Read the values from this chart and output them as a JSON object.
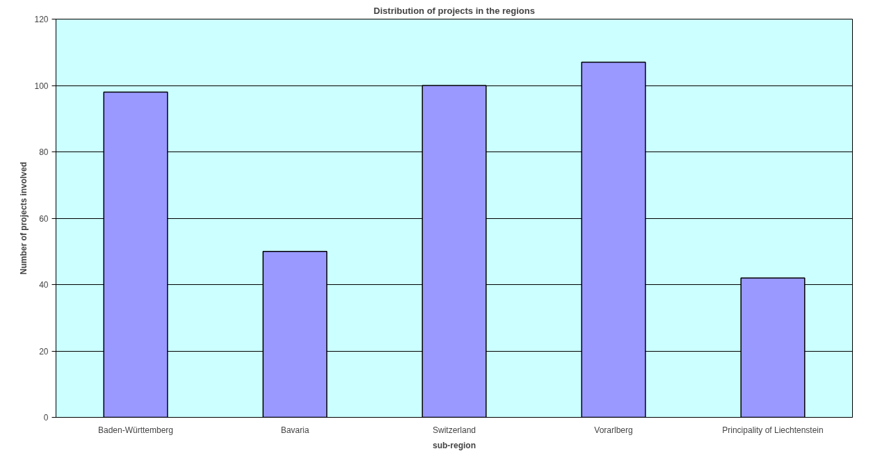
{
  "chart_data": {
    "type": "bar",
    "title": "Distribution of projects in the regions",
    "xlabel": "sub-region",
    "ylabel": "Number of projects involved",
    "categories": [
      "Baden-Württemberg",
      "Bavaria",
      "Switzerland",
      "Vorarlberg",
      "Principality of Liechtenstein"
    ],
    "values": [
      98,
      50,
      100,
      107,
      42
    ],
    "color": "#9999ff",
    "ylim": [
      0,
      120
    ],
    "yticks": [
      0,
      20,
      40,
      60,
      80,
      100,
      120
    ],
    "grid": "y"
  }
}
